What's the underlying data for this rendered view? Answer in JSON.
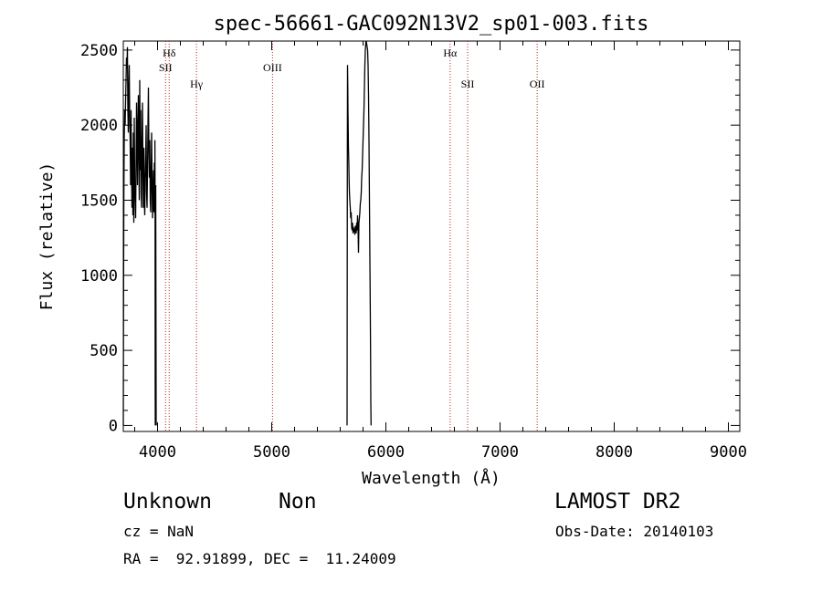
{
  "chart_data": {
    "type": "line",
    "title": "spec-56661-GAC092N13V2_sp01-003.fits",
    "xlabel": "Wavelength (Å)",
    "ylabel": "Flux (relative)",
    "xlim": [
      3700,
      9100
    ],
    "ylim": [
      -40,
      2560
    ],
    "x_ticks": [
      4000,
      5000,
      6000,
      7000,
      8000,
      9000
    ],
    "x_tick_labels": [
      "4000",
      "5000",
      "6000",
      "7000",
      "8000",
      "9000"
    ],
    "y_ticks": [
      0,
      500,
      1000,
      1500,
      2000,
      2500
    ],
    "y_tick_labels": [
      "0",
      "500",
      "1000",
      "1500",
      "2000",
      "2500"
    ],
    "grid": false,
    "line_color": "#000000",
    "marker_color": "#b22222",
    "emission_lines": [
      {
        "label": "Hδ",
        "x": 4102,
        "row": 1
      },
      {
        "label": "SII",
        "x": 4070,
        "row": 2
      },
      {
        "label": "Hγ",
        "x": 4341,
        "row": 3
      },
      {
        "label": "OIII",
        "x": 5007,
        "row": 2
      },
      {
        "label": "Hα",
        "x": 6563,
        "row": 1
      },
      {
        "label": "OII",
        "x": 7325,
        "row": 3
      },
      {
        "label": "SII",
        "x": 6716,
        "row": 3
      }
    ],
    "series": [
      {
        "x": [
          3700,
          3702,
          3705,
          3708,
          3712,
          3716,
          3720,
          3724,
          3728,
          3732,
          3736,
          3740,
          3744,
          3748,
          3752,
          3756,
          3760,
          3764,
          3768,
          3772,
          3776,
          3780,
          3784,
          3788,
          3792,
          3796,
          3800,
          3804,
          3808,
          3812,
          3816,
          3820,
          3824,
          3828,
          3832,
          3836,
          3840,
          3844,
          3848,
          3852,
          3856,
          3860,
          3864,
          3868,
          3872,
          3876,
          3880,
          3884,
          3888,
          3892,
          3896,
          3900,
          3904,
          3908,
          3912,
          3916,
          3920,
          3924,
          3928,
          3932,
          3936,
          3940,
          3944,
          3948,
          3952,
          3956,
          3960,
          3964,
          3968,
          3972,
          3976,
          3980,
          3984,
          3988
        ],
        "values": [
          0,
          900,
          1500,
          1900,
          2100,
          2000,
          2150,
          2300,
          2450,
          2380,
          2520,
          2100,
          1950,
          2250,
          2400,
          2050,
          1900,
          1600,
          2100,
          1700,
          1450,
          1850,
          1400,
          1950,
          1350,
          2050,
          1600,
          1500,
          1380,
          1750,
          2150,
          1900,
          1600,
          2000,
          2200,
          1800,
          1500,
          2300,
          1700,
          2100,
          1550,
          1450,
          1900,
          2150,
          1700,
          1450,
          1850,
          1500,
          1400,
          1650,
          1800,
          2000,
          1550,
          1450,
          1700,
          2000,
          2250,
          1850,
          1650,
          1900,
          1500,
          1420,
          1700,
          1950,
          1600,
          1380,
          1550,
          1700,
          1420,
          1750,
          1500,
          1400,
          1600,
          0
        ]
      },
      {
        "x": [
          5660,
          5662,
          5664,
          5666,
          5668,
          5670,
          5672,
          5675,
          5678,
          5681,
          5684,
          5688,
          5692,
          5696,
          5700,
          5704,
          5708,
          5712,
          5716,
          5720,
          5724,
          5728,
          5732,
          5736,
          5740,
          5744,
          5748,
          5752,
          5756,
          5760,
          5764,
          5768,
          5772,
          5776,
          5780,
          5784,
          5788,
          5792,
          5796,
          5800,
          5804,
          5808,
          5812,
          5816,
          5820,
          5824,
          5828,
          5832,
          5836,
          5840,
          5844,
          5848,
          5852,
          5856,
          5860,
          5864,
          5866,
          5868,
          5870
        ],
        "values": [
          0,
          1800,
          2400,
          2250,
          2100,
          1950,
          1850,
          1750,
          1620,
          1550,
          1500,
          1450,
          1380,
          1420,
          1320,
          1300,
          1350,
          1280,
          1320,
          1290,
          1310,
          1270,
          1330,
          1300,
          1280,
          1350,
          1300,
          1400,
          1320,
          1150,
          1350,
          1380,
          1420,
          1480,
          1500,
          1550,
          1650,
          1700,
          1800,
          1900,
          2000,
          2100,
          2250,
          2400,
          2500,
          2550,
          2560,
          2540,
          2520,
          2500,
          2400,
          2200,
          1900,
          1500,
          1100,
          700,
          400,
          150,
          0
        ]
      },
      {
        "x": [
          3977,
          3978,
          3979,
          3980
        ],
        "values": [
          1900,
          1500,
          300,
          0
        ]
      }
    ]
  },
  "info": {
    "object_class": "Unknown",
    "object_subclass": "Non",
    "survey": "LAMOST DR2",
    "cz": "cz = NaN",
    "obs_date": "Obs-Date: 20140103",
    "coords": "RA =  92.91899, DEC =  11.24009"
  }
}
